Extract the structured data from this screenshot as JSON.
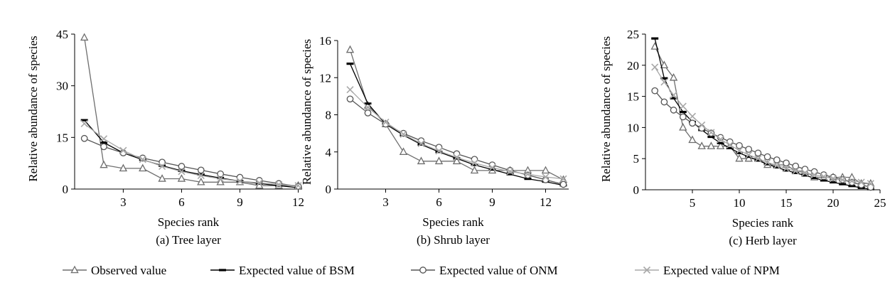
{
  "legend": [
    {
      "label": "Observed value",
      "series_key": "observed"
    },
    {
      "label": "Expected value of BSM",
      "series_key": "bsm"
    },
    {
      "label": "Expected value of ONM",
      "series_key": "onm"
    },
    {
      "label": "Expected value of NPM",
      "series_key": "npm"
    }
  ],
  "series_style": {
    "observed": {
      "color": "#6e6e6e",
      "marker": "triangle"
    },
    "bsm": {
      "color": "#000000",
      "marker": "dash"
    },
    "onm": {
      "color": "#555555",
      "marker": "circle"
    },
    "npm": {
      "color": "#a8a8a8",
      "marker": "cross"
    }
  },
  "chart_data": [
    {
      "type": "line",
      "caption": "(a) Tree layer",
      "xlabel": "Species rank",
      "ylabel": "Relative abundance of species",
      "xlim": [
        0.5,
        12.2
      ],
      "ylim": [
        0,
        45
      ],
      "xticks": [
        3,
        6,
        9,
        12
      ],
      "yticks": [
        0,
        15,
        30,
        45
      ],
      "x": [
        1,
        2,
        3,
        4,
        5,
        6,
        7,
        8,
        9,
        10,
        11,
        12
      ],
      "series": [
        {
          "key": "observed",
          "values": [
            44,
            7,
            6,
            6,
            3,
            3,
            2,
            2,
            2,
            1,
            1,
            1
          ]
        },
        {
          "key": "bsm",
          "values": [
            20,
            13.5,
            10.5,
            8.5,
            6.8,
            5.3,
            4.2,
            3.2,
            2.3,
            1.6,
            1.0,
            0.4
          ]
        },
        {
          "key": "onm",
          "values": [
            14.7,
            12.3,
            10.5,
            9,
            7.8,
            6.6,
            5.5,
            4.4,
            3.4,
            2.5,
            1.6,
            0.8
          ]
        },
        {
          "key": "npm",
          "values": [
            19,
            14.6,
            11.2,
            8.6,
            6.6,
            5.1,
            3.9,
            3.0,
            2.3,
            1.8,
            1.3,
            1.0
          ]
        }
      ]
    },
    {
      "type": "line",
      "caption": "(b) Shrub layer",
      "xlabel": "Species rank",
      "ylabel": "Relative abundance of species",
      "xlim": [
        0.3,
        13.3
      ],
      "ylim": [
        0,
        16
      ],
      "xticks": [
        3,
        6,
        9,
        12
      ],
      "yticks": [
        0,
        4,
        8,
        12,
        16
      ],
      "x": [
        1,
        2,
        3,
        4,
        5,
        6,
        7,
        8,
        9,
        10,
        11,
        12,
        13
      ],
      "series": [
        {
          "key": "observed",
          "values": [
            15,
            9,
            7,
            4,
            3,
            3,
            3,
            2,
            2,
            2,
            2,
            2,
            1
          ]
        },
        {
          "key": "bsm",
          "values": [
            13.5,
            9.2,
            7.0,
            5.8,
            4.8,
            4.0,
            3.3,
            2.6,
            2.1,
            1.6,
            1.1,
            0.8,
            0.4
          ]
        },
        {
          "key": "onm",
          "values": [
            9.7,
            8.2,
            7.0,
            6.0,
            5.2,
            4.5,
            3.8,
            3.2,
            2.6,
            2.0,
            1.5,
            1.0,
            0.5
          ]
        },
        {
          "key": "npm",
          "values": [
            10.7,
            8.8,
            7.2,
            5.9,
            4.9,
            4.1,
            3.4,
            2.8,
            2.3,
            1.9,
            1.6,
            1.3,
            1.1
          ]
        }
      ]
    },
    {
      "type": "line",
      "caption": "(c) Herb layer",
      "xlabel": "Species rank",
      "ylabel": "Relative abundance of species",
      "xlim": [
        0,
        25
      ],
      "ylim": [
        0,
        25
      ],
      "xticks": [
        5,
        10,
        15,
        20,
        25
      ],
      "yticks": [
        0,
        5,
        10,
        15,
        20,
        25
      ],
      "x": [
        1,
        2,
        3,
        4,
        5,
        6,
        7,
        8,
        9,
        10,
        11,
        12,
        13,
        14,
        15,
        16,
        17,
        18,
        19,
        20,
        21,
        22,
        23,
        24
      ],
      "series": [
        {
          "key": "observed",
          "values": [
            23,
            20,
            18,
            10,
            8,
            7,
            7,
            7,
            7,
            5,
            5,
            5,
            4,
            4,
            4,
            3,
            3,
            2,
            2,
            2,
            2,
            2,
            1,
            1
          ]
        },
        {
          "key": "bsm",
          "values": [
            24.3,
            17.9,
            14.7,
            12.5,
            10.9,
            9.6,
            8.5,
            7.5,
            6.7,
            5.9,
            5.3,
            4.7,
            4.1,
            3.6,
            3.1,
            2.7,
            2.3,
            1.9,
            1.5,
            1.2,
            0.9,
            0.6,
            0.3,
            0.1
          ]
        },
        {
          "key": "onm",
          "values": [
            15.9,
            14.1,
            12.8,
            11.7,
            10.7,
            9.9,
            9.1,
            8.4,
            7.7,
            7.1,
            6.5,
            5.9,
            5.3,
            4.8,
            4.3,
            3.8,
            3.3,
            2.9,
            2.4,
            2.0,
            1.6,
            1.2,
            0.8,
            0.4
          ]
        },
        {
          "key": "npm",
          "values": [
            19.7,
            17.3,
            15.2,
            13.4,
            11.8,
            10.4,
            9.2,
            8.1,
            7.2,
            6.3,
            5.6,
            5.0,
            4.4,
            3.9,
            3.4,
            3.0,
            2.7,
            2.4,
            2.1,
            1.8,
            1.6,
            1.4,
            1.2,
            1.0
          ]
        }
      ]
    }
  ]
}
